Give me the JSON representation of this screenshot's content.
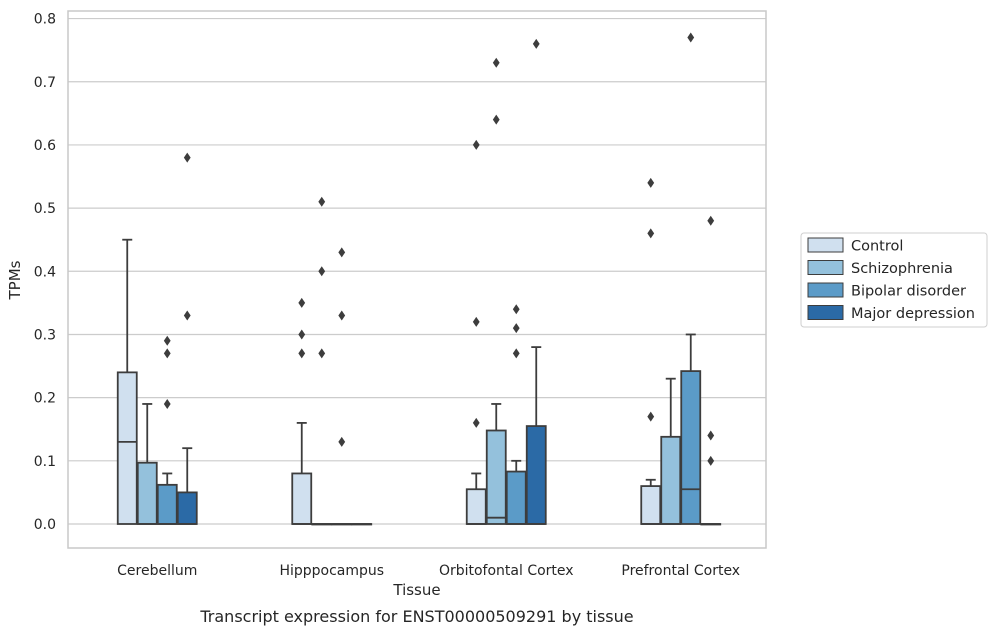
{
  "chart_data": {
    "type": "box",
    "ylabel": "TPMs",
    "xlabel": "Tissue",
    "caption": "Transcript expression for ENST00000509291 by tissue",
    "ylim": [
      -0.038,
      0.812
    ],
    "yticks": [
      "0.0",
      "0.1",
      "0.2",
      "0.3",
      "0.4",
      "0.5",
      "0.6",
      "0.7",
      "0.8"
    ],
    "grid": "horizontal",
    "legend_position": "right",
    "categories": [
      "Cerebellum",
      "Hipppocampus",
      "Orbitofontal Cortex",
      "Prefrontal Cortex"
    ],
    "series": [
      {
        "name": "Control",
        "color": "#d0e0ef",
        "boxes": [
          {
            "min": 0,
            "q1": 0,
            "median": 0.13,
            "q3": 0.24,
            "max": 0.45,
            "outliers": []
          },
          {
            "min": 0,
            "q1": 0,
            "median": 0,
            "q3": 0.08,
            "max": 0.16,
            "outliers": [
              0.27,
              0.3,
              0.35
            ]
          },
          {
            "min": 0,
            "q1": 0,
            "median": 0,
            "q3": 0.055,
            "max": 0.08,
            "outliers": [
              0.16,
              0.32,
              0.6
            ]
          },
          {
            "min": 0,
            "q1": 0,
            "median": 0,
            "q3": 0.06,
            "max": 0.07,
            "outliers": [
              0.17,
              0.46,
              0.54
            ]
          }
        ]
      },
      {
        "name": "Schizophrenia",
        "color": "#94c1dc",
        "boxes": [
          {
            "min": 0,
            "q1": 0,
            "median": 0,
            "q3": 0.097,
            "max": 0.19,
            "outliers": []
          },
          {
            "min": 0,
            "q1": 0,
            "median": 0,
            "q3": 0,
            "max": 0,
            "outliers": [
              0.27,
              0.4,
              0.51
            ]
          },
          {
            "min": 0,
            "q1": 0,
            "median": 0.01,
            "q3": 0.148,
            "max": 0.19,
            "outliers": [
              0.64,
              0.73
            ]
          },
          {
            "min": 0,
            "q1": 0,
            "median": 0,
            "q3": 0.138,
            "max": 0.23,
            "outliers": []
          }
        ]
      },
      {
        "name": "Bipolar disorder",
        "color": "#5b9bc8",
        "boxes": [
          {
            "min": 0,
            "q1": 0,
            "median": 0,
            "q3": 0.062,
            "max": 0.08,
            "outliers": [
              0.19,
              0.27,
              0.29
            ]
          },
          {
            "min": 0,
            "q1": 0,
            "median": 0,
            "q3": 0,
            "max": 0,
            "outliers": [
              0.13,
              0.33,
              0.43
            ]
          },
          {
            "min": 0,
            "q1": 0,
            "median": 0,
            "q3": 0.083,
            "max": 0.1,
            "outliers": [
              0.27,
              0.31,
              0.34
            ]
          },
          {
            "min": 0,
            "q1": 0,
            "median": 0.055,
            "q3": 0.242,
            "max": 0.3,
            "outliers": [
              0.77
            ]
          }
        ]
      },
      {
        "name": "Major depression",
        "color": "#2b6aa6",
        "boxes": [
          {
            "min": 0,
            "q1": 0,
            "median": 0,
            "q3": 0.05,
            "max": 0.12,
            "outliers": [
              0.33,
              0.58
            ]
          },
          {
            "min": 0,
            "q1": 0,
            "median": 0,
            "q3": 0,
            "max": 0,
            "outliers": []
          },
          {
            "min": 0,
            "q1": 0,
            "median": 0,
            "q3": 0.155,
            "max": 0.28,
            "outliers": [
              0.76
            ]
          },
          {
            "min": 0,
            "q1": 0,
            "median": 0,
            "q3": 0,
            "max": 0,
            "outliers": [
              0.1,
              0.14,
              0.48
            ]
          }
        ]
      }
    ]
  },
  "colors": {
    "edge": "#3d3d3d",
    "grid": "#cccccc",
    "frame": "#c8c8c8"
  }
}
